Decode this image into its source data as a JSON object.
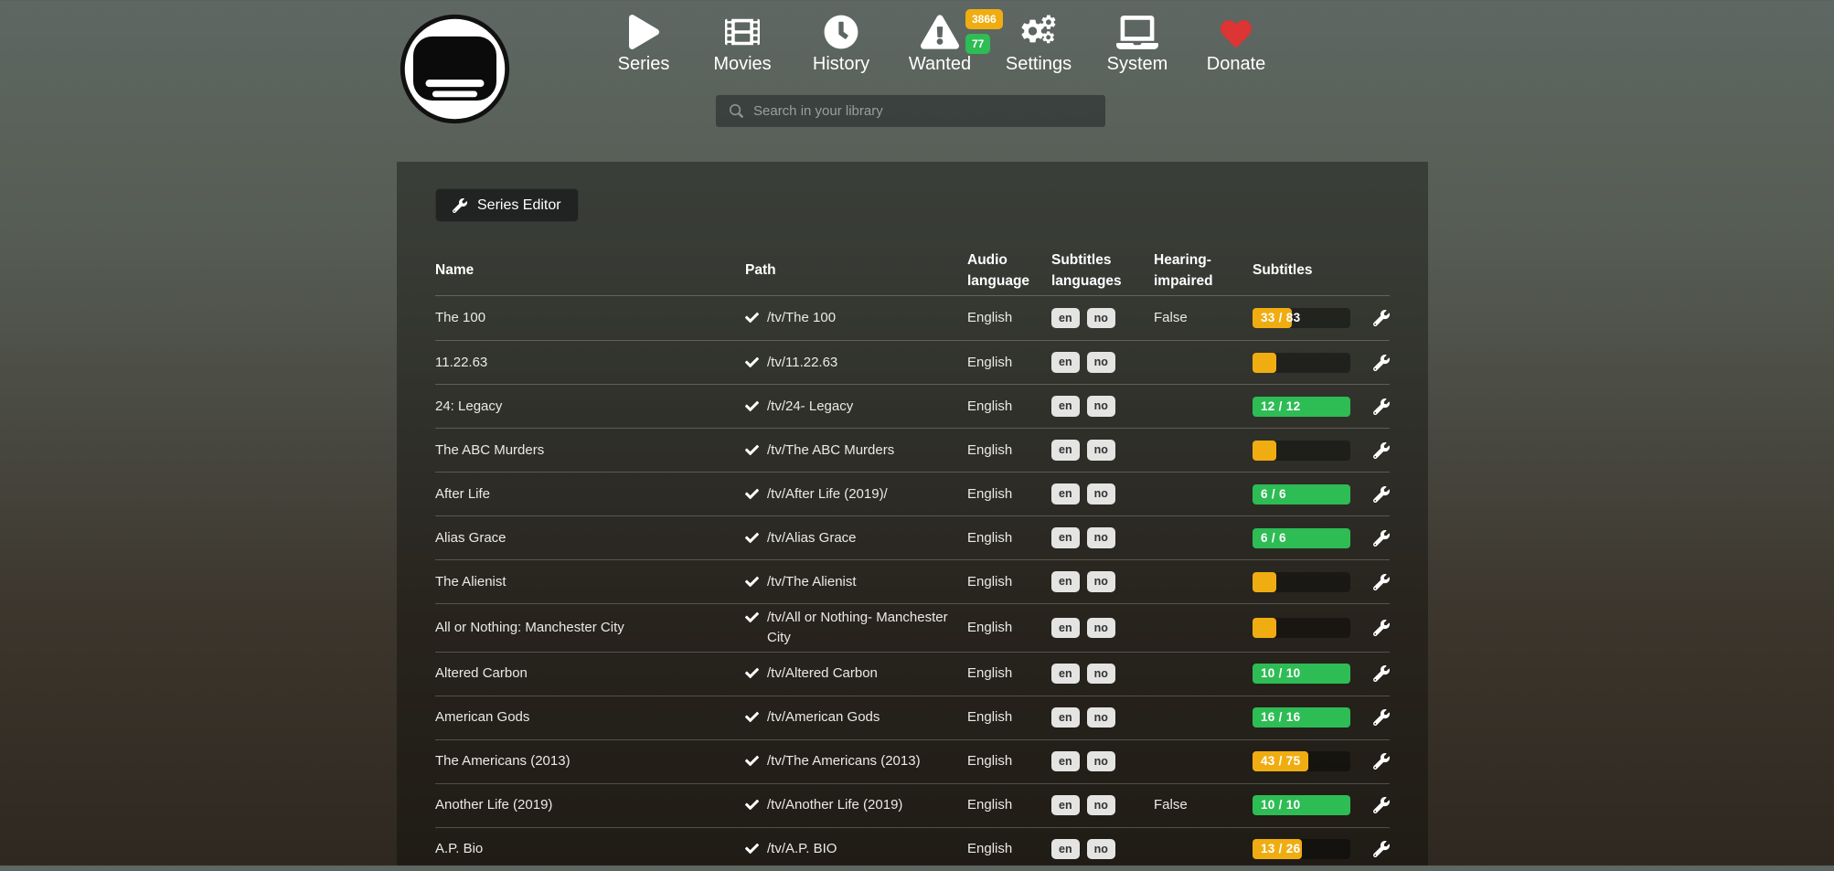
{
  "nav": {
    "items": [
      {
        "label": "Series",
        "icon": "play-icon"
      },
      {
        "label": "Movies",
        "icon": "film-icon"
      },
      {
        "label": "History",
        "icon": "clock-icon"
      },
      {
        "label": "Wanted",
        "icon": "warning-icon",
        "badges": [
          {
            "value": "3866",
            "color": "yellow"
          },
          {
            "value": "77",
            "color": "green"
          }
        ]
      },
      {
        "label": "Settings",
        "icon": "gears-icon"
      },
      {
        "label": "System",
        "icon": "laptop-icon"
      },
      {
        "label": "Donate",
        "icon": "heart-icon"
      }
    ],
    "search_placeholder": "Search in your library"
  },
  "toolbar": {
    "series_editor_label": "Series Editor"
  },
  "table": {
    "headers": [
      "Name",
      "Path",
      "Audio language",
      "Subtitles languages",
      "Hearing-impaired",
      "Subtitles"
    ],
    "rows": [
      {
        "name": "The 100",
        "path": "/tv/The 100",
        "audio_language": "English",
        "subtitles_languages": [
          "en",
          "no"
        ],
        "hearing_impaired": "False",
        "subtitles": {
          "label": "33 / 83",
          "percent": 40,
          "color": "yellow"
        }
      },
      {
        "name": "11.22.63",
        "path": "/tv/11.22.63",
        "audio_language": "English",
        "subtitles_languages": [
          "en",
          "no"
        ],
        "hearing_impaired": "",
        "subtitles": {
          "label": "",
          "percent": 24,
          "color": "yellow"
        }
      },
      {
        "name": "24: Legacy",
        "path": "/tv/24- Legacy",
        "audio_language": "English",
        "subtitles_languages": [
          "en",
          "no"
        ],
        "hearing_impaired": "",
        "subtitles": {
          "label": "12 / 12",
          "percent": 100,
          "color": "green"
        }
      },
      {
        "name": "The ABC Murders",
        "path": "/tv/The ABC Murders",
        "audio_language": "English",
        "subtitles_languages": [
          "en",
          "no"
        ],
        "hearing_impaired": "",
        "subtitles": {
          "label": "",
          "percent": 24,
          "color": "yellow"
        }
      },
      {
        "name": "After Life",
        "path": "/tv/After Life (2019)/",
        "audio_language": "English",
        "subtitles_languages": [
          "en",
          "no"
        ],
        "hearing_impaired": "",
        "subtitles": {
          "label": "6 / 6",
          "percent": 100,
          "color": "green"
        }
      },
      {
        "name": "Alias Grace",
        "path": "/tv/Alias Grace",
        "audio_language": "English",
        "subtitles_languages": [
          "en",
          "no"
        ],
        "hearing_impaired": "",
        "subtitles": {
          "label": "6 / 6",
          "percent": 100,
          "color": "green"
        }
      },
      {
        "name": "The Alienist",
        "path": "/tv/The Alienist",
        "audio_language": "English",
        "subtitles_languages": [
          "en",
          "no"
        ],
        "hearing_impaired": "",
        "subtitles": {
          "label": "",
          "percent": 24,
          "color": "yellow"
        }
      },
      {
        "name": "All or Nothing: Manchester City",
        "path": "/tv/All or Nothing- Manchester City",
        "audio_language": "English",
        "subtitles_languages": [
          "en",
          "no"
        ],
        "hearing_impaired": "",
        "subtitles": {
          "label": "",
          "percent": 24,
          "color": "yellow"
        }
      },
      {
        "name": "Altered Carbon",
        "path": "/tv/Altered Carbon",
        "audio_language": "English",
        "subtitles_languages": [
          "en",
          "no"
        ],
        "hearing_impaired": "",
        "subtitles": {
          "label": "10 / 10",
          "percent": 100,
          "color": "green"
        }
      },
      {
        "name": "American Gods",
        "path": "/tv/American Gods",
        "audio_language": "English",
        "subtitles_languages": [
          "en",
          "no"
        ],
        "hearing_impaired": "",
        "subtitles": {
          "label": "16 / 16",
          "percent": 100,
          "color": "green"
        }
      },
      {
        "name": "The Americans (2013)",
        "path": "/tv/The Americans (2013)",
        "audio_language": "English",
        "subtitles_languages": [
          "en",
          "no"
        ],
        "hearing_impaired": "",
        "subtitles": {
          "label": "43 / 75",
          "percent": 57,
          "color": "yellow"
        }
      },
      {
        "name": "Another Life (2019)",
        "path": "/tv/Another Life (2019)",
        "audio_language": "English",
        "subtitles_languages": [
          "en",
          "no"
        ],
        "hearing_impaired": "False",
        "subtitles": {
          "label": "10 / 10",
          "percent": 100,
          "color": "green"
        }
      },
      {
        "name": "A.P. Bio",
        "path": "/tv/A.P. BIO",
        "audio_language": "English",
        "subtitles_languages": [
          "en",
          "no"
        ],
        "hearing_impaired": "",
        "subtitles": {
          "label": "13 / 26",
          "percent": 50,
          "color": "yellow"
        }
      }
    ]
  },
  "colors": {
    "yellow": "#f0ad11",
    "green": "#2ebc55",
    "heart_red": "#dd3434"
  }
}
